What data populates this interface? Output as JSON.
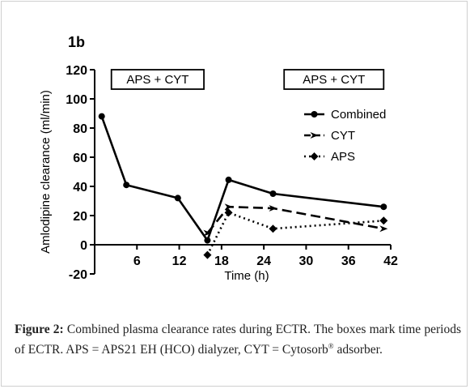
{
  "panel_label": "1b",
  "caption": {
    "label": "Figure 2:",
    "text_before_reg": "Combined plasma clearance rates during ECTR. The boxes mark time periods of ECTR. APS = APS21 EH (HCO) dialyzer, CYT = Cytosorb",
    "reg_mark": "®",
    "text_after_reg": " adsorber."
  },
  "chart_data": {
    "type": "line",
    "title": "",
    "xlabel": "Time (h)",
    "ylabel": "Amlodipine clearance (ml/min)",
    "xlim": [
      0,
      42
    ],
    "ylim": [
      -20,
      120
    ],
    "x_ticks": [
      6,
      12,
      18,
      24,
      30,
      36,
      42
    ],
    "y_ticks": [
      -20,
      0,
      20,
      40,
      60,
      80,
      100,
      120
    ],
    "grid": false,
    "legend_position": "right",
    "series": [
      {
        "name": "Combined",
        "style": "solid",
        "marker": "circle",
        "points": [
          [
            1,
            88
          ],
          [
            4.5,
            41
          ],
          [
            11.8,
            32
          ],
          [
            16,
            3
          ],
          [
            19,
            44.5
          ],
          [
            25.3,
            35
          ],
          [
            41,
            26
          ]
        ]
      },
      {
        "name": "CYT",
        "style": "dashed",
        "marker": "arrow",
        "points": [
          [
            16,
            8
          ],
          [
            19,
            26
          ],
          [
            25.3,
            25
          ],
          [
            41,
            11
          ]
        ]
      },
      {
        "name": "APS",
        "style": "dotted",
        "marker": "diamond",
        "points": [
          [
            16,
            -7
          ],
          [
            19,
            22
          ],
          [
            25.3,
            11
          ],
          [
            41,
            16.5
          ]
        ]
      }
    ],
    "annotations": [
      {
        "label": "APS + CYT",
        "x_start": 1,
        "x_end": 15.5
      },
      {
        "label": "APS + CYT",
        "x_start": 25.5,
        "x_end": 41
      }
    ]
  }
}
